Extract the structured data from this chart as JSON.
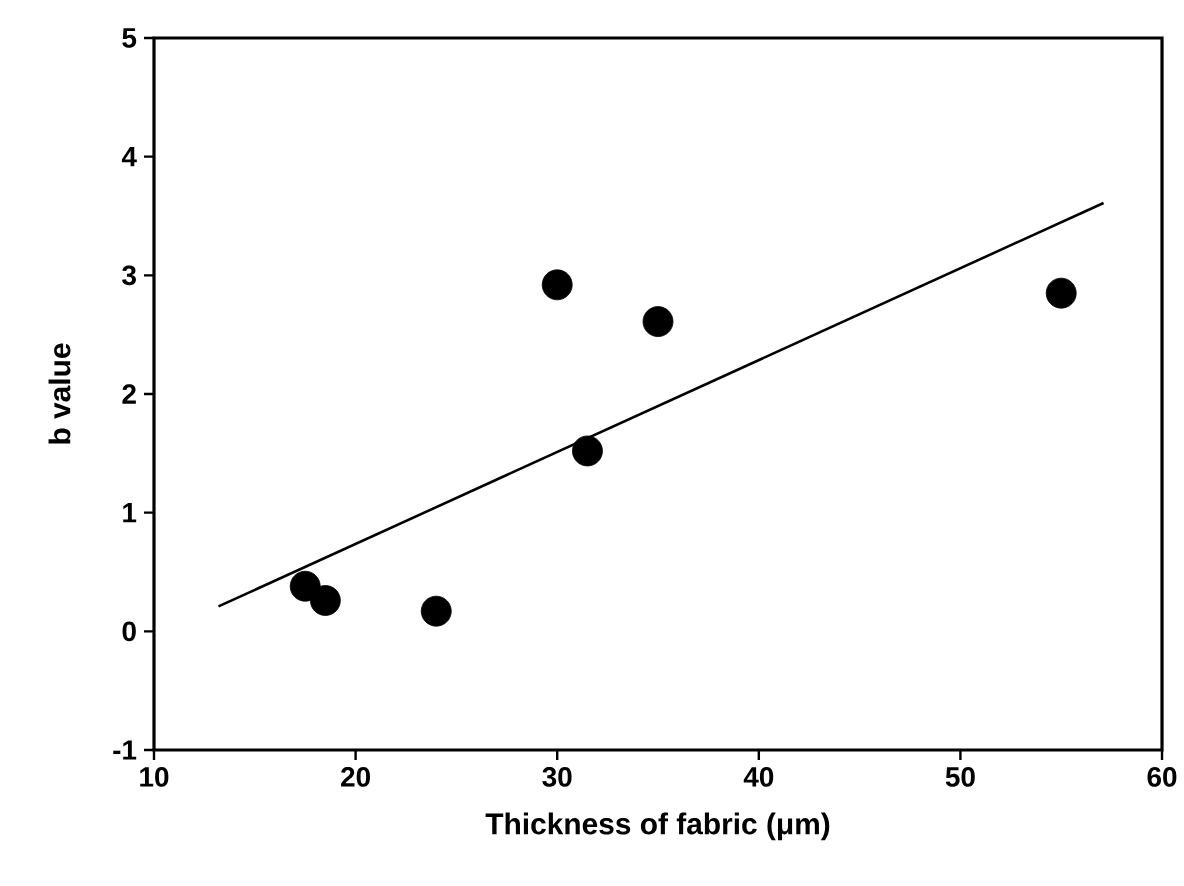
{
  "chart_data": {
    "type": "scatter",
    "xlabel": "Thickness of fabric (μm)",
    "ylabel": "b value",
    "xlim": [
      10,
      60
    ],
    "xticks": [
      10,
      20,
      30,
      40,
      50,
      60
    ],
    "ylim": [
      -1,
      5
    ],
    "yticks": [
      -1,
      0,
      1,
      2,
      3,
      4,
      5
    ],
    "marker": "circle",
    "grid": false,
    "series": [
      {
        "color": "#000000",
        "x": [
          17.5,
          18.5,
          24.0,
          30.0,
          31.5,
          35.0,
          55.0
        ],
        "values": [
          0.38,
          0.26,
          0.17,
          2.92,
          1.52,
          2.61,
          2.85
        ]
      },
      {
        "type": "line",
        "color": "#000000",
        "x": [
          13.2,
          57.1
        ],
        "values": [
          0.21,
          3.61
        ],
        "marker": "none",
        "line_style": "solid"
      }
    ]
  }
}
